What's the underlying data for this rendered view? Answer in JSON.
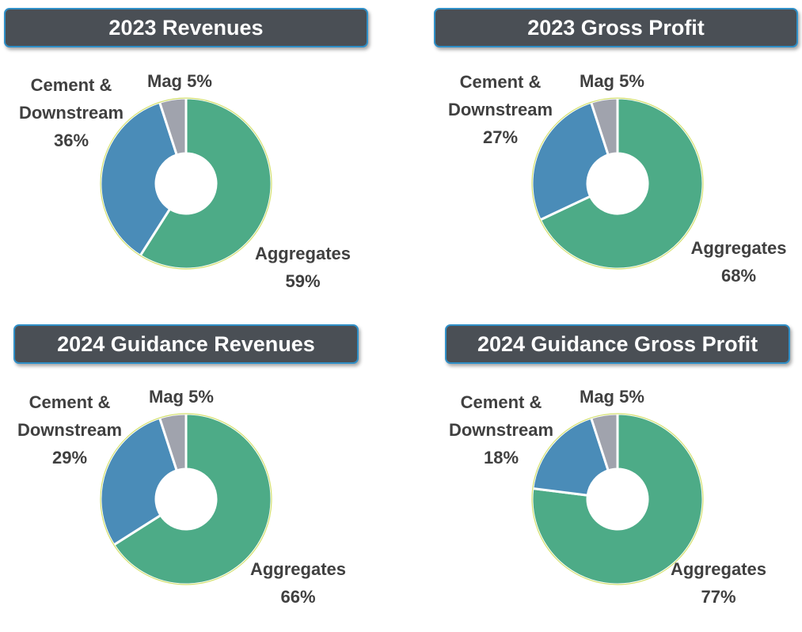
{
  "colors": {
    "aggregates": "#4dab87",
    "cement": "#4a8cb8",
    "mag": "#a0a3ad",
    "edge": "#c8d84a",
    "title_bg": "#4a4f55"
  },
  "chart_data": [
    {
      "type": "pie",
      "title": "2023 Revenues",
      "categories": [
        "Aggregates",
        "Cement & Downstream",
        "Mag"
      ],
      "values": [
        59,
        36,
        5
      ],
      "labels": {
        "agg_name": "Aggregates",
        "agg_pct": "59%",
        "cement_line1": "Cement &",
        "cement_line2": "Downstream",
        "cement_pct": "36%",
        "mag": "Mag 5%"
      }
    },
    {
      "type": "pie",
      "title": "2023 Gross Profit",
      "categories": [
        "Aggregates",
        "Cement & Downstream",
        "Mag"
      ],
      "values": [
        68,
        27,
        5
      ],
      "labels": {
        "agg_name": "Aggregates",
        "agg_pct": "68%",
        "cement_line1": "Cement &",
        "cement_line2": "Downstream",
        "cement_pct": "27%",
        "mag": "Mag 5%"
      }
    },
    {
      "type": "pie",
      "title": "2024 Guidance Revenues",
      "categories": [
        "Aggregates",
        "Cement & Downstream",
        "Mag"
      ],
      "values": [
        66,
        29,
        5
      ],
      "labels": {
        "agg_name": "Aggregates",
        "agg_pct": "66%",
        "cement_line1": "Cement &",
        "cement_line2": "Downstream",
        "cement_pct": "29%",
        "mag": "Mag 5%"
      }
    },
    {
      "type": "pie",
      "title": "2024 Guidance Gross Profit",
      "categories": [
        "Aggregates",
        "Cement & Downstream",
        "Mag"
      ],
      "values": [
        77,
        18,
        5
      ],
      "labels": {
        "agg_name": "Aggregates",
        "agg_pct": "77%",
        "cement_line1": "Cement &",
        "cement_line2": "Downstream",
        "cement_pct": "18%",
        "mag": "Mag 5%"
      }
    }
  ]
}
